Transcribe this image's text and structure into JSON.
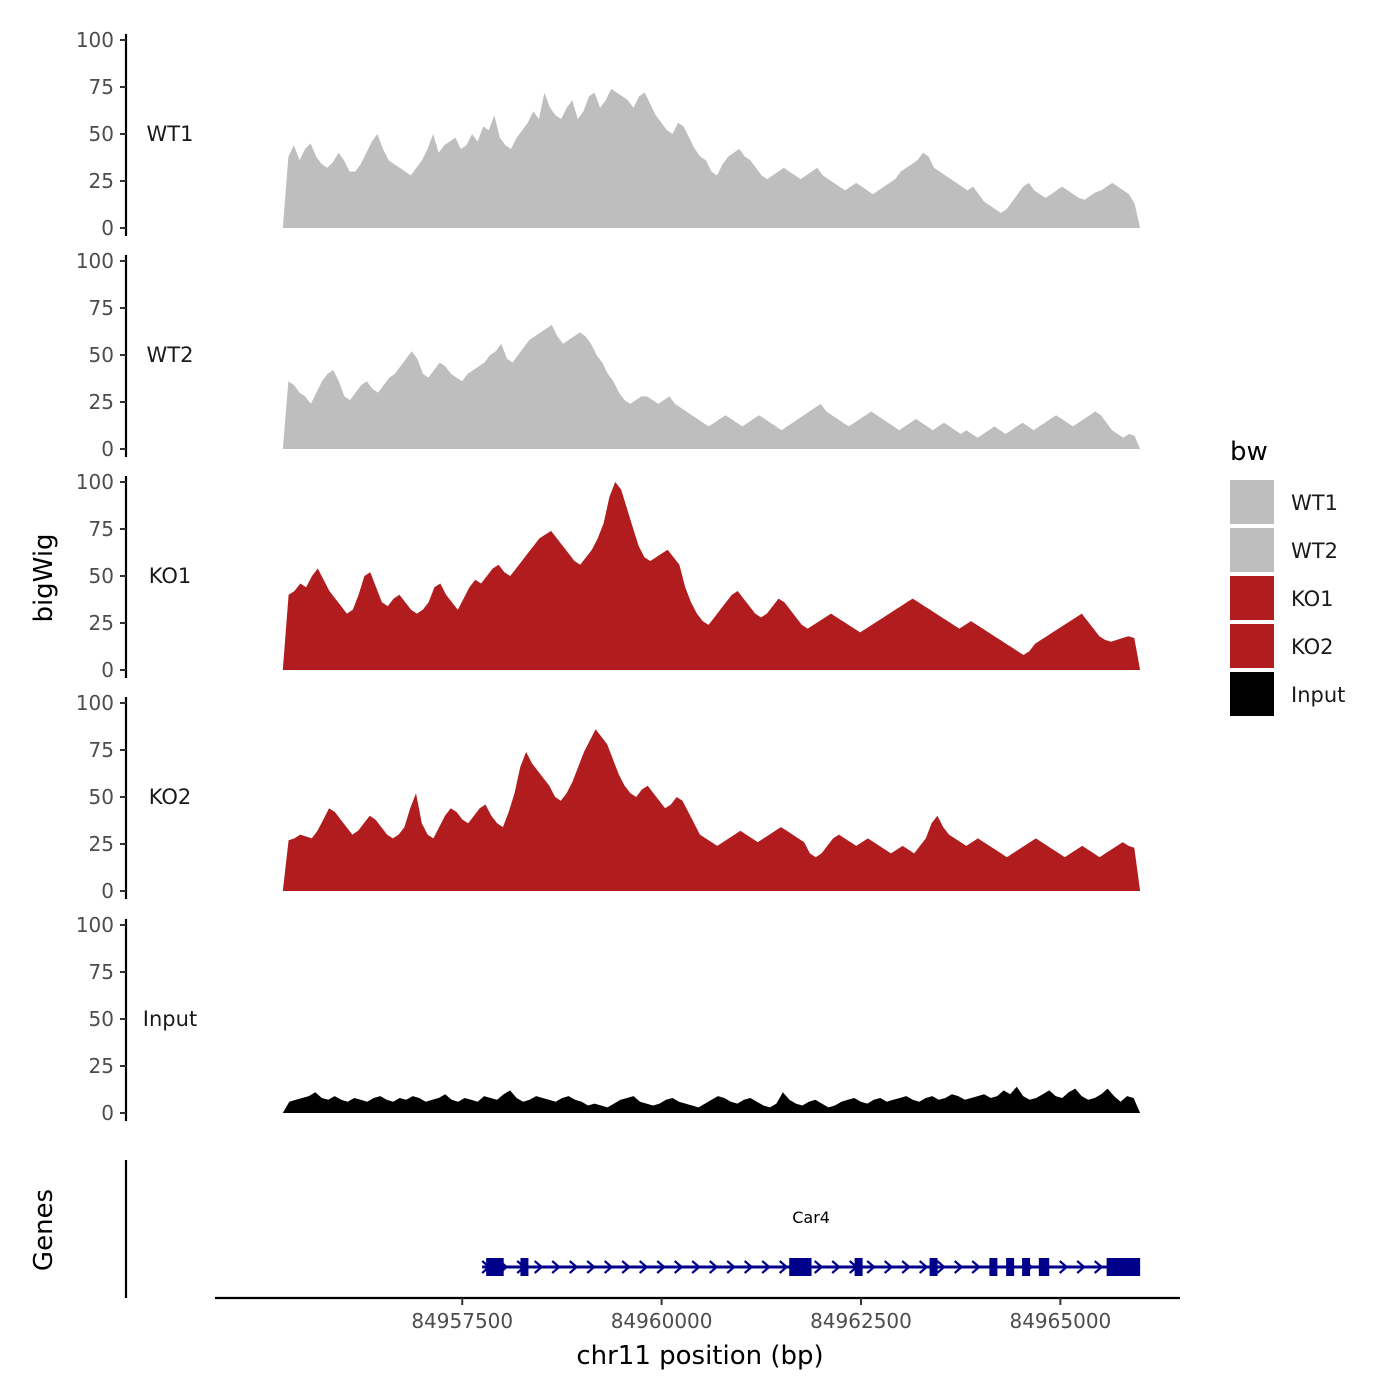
{
  "chart_data": {
    "type": "area",
    "ylabel": "bigWig",
    "xlabel": "chr11 position (bp)",
    "genes_ylabel": "Genes",
    "ylim": [
      0,
      100
    ],
    "yticks": [
      0,
      25,
      50,
      75,
      100
    ],
    "ytick_labels": [
      "0",
      "25",
      "50",
      "75",
      "100"
    ],
    "xlim": [
      84954400,
      84966500
    ],
    "xticks": [
      84957500,
      84960000,
      84962500,
      84965000
    ],
    "xtick_labels": [
      "84957500",
      "84960000",
      "84962500",
      "84965000"
    ],
    "region": {
      "start": 84955250,
      "end": 84966000
    },
    "legend": {
      "title": "bw",
      "entries": [
        {
          "label": "WT1",
          "color": "#bebebe"
        },
        {
          "label": "WT2",
          "color": "#bebebe"
        },
        {
          "label": "KO1",
          "color": "#b11d1f"
        },
        {
          "label": "KO2",
          "color": "#b11d1f"
        },
        {
          "label": "Input",
          "color": "#000000"
        }
      ]
    },
    "series": [
      {
        "name": "WT1",
        "color": "#bebebe",
        "values": [
          0,
          38,
          44,
          36,
          42,
          45,
          38,
          34,
          32,
          35,
          40,
          36,
          30,
          30,
          34,
          40,
          46,
          50,
          42,
          36,
          34,
          32,
          30,
          28,
          32,
          36,
          42,
          50,
          40,
          44,
          46,
          48,
          42,
          44,
          50,
          46,
          54,
          52,
          60,
          48,
          44,
          42,
          48,
          52,
          56,
          62,
          58,
          72,
          64,
          60,
          58,
          64,
          68,
          58,
          62,
          70,
          72,
          64,
          68,
          74,
          72,
          70,
          68,
          64,
          70,
          72,
          66,
          60,
          56,
          52,
          50,
          56,
          54,
          48,
          42,
          38,
          36,
          30,
          28,
          34,
          38,
          40,
          42,
          38,
          36,
          32,
          28,
          26,
          28,
          30,
          32,
          30,
          28,
          26,
          28,
          30,
          32,
          28,
          26,
          24,
          22,
          20,
          22,
          24,
          22,
          20,
          18,
          20,
          22,
          24,
          26,
          30,
          32,
          34,
          36,
          40,
          38,
          32,
          30,
          28,
          26,
          24,
          22,
          20,
          22,
          18,
          14,
          12,
          10,
          8,
          10,
          14,
          18,
          22,
          24,
          20,
          18,
          16,
          18,
          20,
          22,
          20,
          18,
          16,
          15,
          17,
          19,
          20,
          22,
          24,
          22,
          20,
          18,
          13,
          0
        ]
      },
      {
        "name": "WT2",
        "color": "#bebebe",
        "values": [
          0,
          36,
          34,
          30,
          28,
          24,
          30,
          36,
          40,
          42,
          36,
          28,
          26,
          30,
          34,
          36,
          32,
          30,
          34,
          38,
          40,
          44,
          48,
          52,
          48,
          40,
          38,
          42,
          46,
          44,
          40,
          38,
          36,
          40,
          42,
          44,
          46,
          50,
          52,
          56,
          48,
          46,
          50,
          54,
          58,
          60,
          62,
          64,
          66,
          60,
          56,
          58,
          60,
          62,
          60,
          56,
          50,
          46,
          40,
          36,
          30,
          26,
          24,
          26,
          28,
          28,
          26,
          24,
          26,
          28,
          24,
          22,
          20,
          18,
          16,
          14,
          12,
          14,
          16,
          18,
          16,
          14,
          12,
          14,
          16,
          18,
          16,
          14,
          12,
          10,
          12,
          14,
          16,
          18,
          20,
          22,
          24,
          20,
          18,
          16,
          14,
          12,
          14,
          16,
          18,
          20,
          18,
          16,
          14,
          12,
          10,
          12,
          14,
          16,
          14,
          12,
          10,
          12,
          14,
          12,
          10,
          8,
          10,
          8,
          6,
          8,
          10,
          12,
          10,
          8,
          10,
          12,
          14,
          12,
          10,
          12,
          14,
          16,
          18,
          16,
          14,
          12,
          14,
          16,
          18,
          20,
          18,
          14,
          10,
          8,
          6,
          8,
          7,
          0
        ]
      },
      {
        "name": "KO1",
        "color": "#b11d1f",
        "values": [
          0,
          40,
          42,
          46,
          44,
          50,
          54,
          48,
          42,
          38,
          34,
          30,
          32,
          40,
          50,
          52,
          44,
          36,
          34,
          38,
          40,
          36,
          32,
          30,
          32,
          36,
          44,
          46,
          40,
          36,
          32,
          38,
          44,
          48,
          46,
          50,
          54,
          56,
          52,
          50,
          54,
          58,
          62,
          66,
          70,
          72,
          74,
          70,
          66,
          62,
          58,
          56,
          60,
          64,
          70,
          78,
          92,
          100,
          96,
          86,
          76,
          66,
          60,
          58,
          60,
          62,
          64,
          60,
          56,
          44,
          36,
          30,
          26,
          24,
          28,
          32,
          36,
          40,
          42,
          38,
          34,
          30,
          28,
          30,
          34,
          38,
          36,
          32,
          28,
          24,
          22,
          24,
          26,
          28,
          30,
          28,
          26,
          24,
          22,
          20,
          22,
          24,
          26,
          28,
          30,
          32,
          34,
          36,
          38,
          36,
          34,
          32,
          30,
          28,
          26,
          24,
          22,
          24,
          26,
          24,
          22,
          20,
          18,
          16,
          14,
          12,
          10,
          8,
          10,
          14,
          16,
          18,
          20,
          22,
          24,
          26,
          28,
          30,
          26,
          22,
          18,
          16,
          15,
          16,
          17,
          18,
          17,
          0
        ]
      },
      {
        "name": "KO2",
        "color": "#b11d1f",
        "values": [
          0,
          27,
          28,
          30,
          29,
          28,
          32,
          38,
          44,
          42,
          38,
          34,
          30,
          32,
          36,
          40,
          38,
          34,
          30,
          28,
          30,
          34,
          44,
          52,
          36,
          30,
          28,
          34,
          40,
          44,
          42,
          38,
          36,
          40,
          44,
          46,
          40,
          36,
          34,
          42,
          52,
          66,
          74,
          68,
          64,
          60,
          56,
          50,
          48,
          52,
          58,
          66,
          74,
          80,
          86,
          82,
          78,
          70,
          62,
          56,
          52,
          50,
          54,
          56,
          52,
          48,
          44,
          46,
          50,
          48,
          42,
          36,
          30,
          28,
          26,
          24,
          26,
          28,
          30,
          32,
          30,
          28,
          26,
          28,
          30,
          32,
          34,
          32,
          30,
          28,
          26,
          20,
          18,
          20,
          24,
          28,
          30,
          28,
          26,
          24,
          26,
          28,
          26,
          24,
          22,
          20,
          22,
          24,
          22,
          20,
          24,
          28,
          36,
          40,
          34,
          30,
          28,
          26,
          24,
          26,
          28,
          26,
          24,
          22,
          20,
          18,
          20,
          22,
          24,
          26,
          28,
          26,
          24,
          22,
          20,
          18,
          20,
          22,
          24,
          22,
          20,
          18,
          20,
          22,
          24,
          26,
          24,
          23,
          0
        ]
      },
      {
        "name": "Input",
        "color": "#000000",
        "values": [
          0,
          6,
          7,
          8,
          9,
          11,
          8,
          7,
          9,
          7,
          6,
          8,
          7,
          6,
          8,
          9,
          7,
          6,
          8,
          7,
          9,
          8,
          6,
          7,
          8,
          10,
          7,
          6,
          8,
          7,
          6,
          9,
          8,
          7,
          10,
          12,
          8,
          6,
          7,
          9,
          8,
          7,
          6,
          8,
          9,
          7,
          6,
          4,
          5,
          4,
          3,
          5,
          7,
          8,
          9,
          6,
          5,
          4,
          5,
          7,
          8,
          6,
          5,
          4,
          3,
          5,
          7,
          9,
          8,
          6,
          5,
          7,
          8,
          6,
          4,
          3,
          5,
          11,
          7,
          5,
          4,
          6,
          7,
          5,
          3,
          4,
          6,
          7,
          8,
          6,
          5,
          7,
          8,
          6,
          7,
          8,
          9,
          7,
          6,
          8,
          9,
          7,
          8,
          10,
          9,
          7,
          8,
          9,
          10,
          8,
          9,
          12,
          10,
          14,
          9,
          7,
          8,
          10,
          12,
          9,
          8,
          11,
          13,
          9,
          7,
          8,
          10,
          13,
          9,
          6,
          9,
          8,
          0
        ]
      }
    ],
    "gene": {
      "name": "Car4",
      "strand": "+",
      "start": 84957750,
      "end": 84966000,
      "color": "#00008b",
      "exons": [
        {
          "start": 84957800,
          "end": 84958020
        },
        {
          "start": 84958230,
          "end": 84958330
        },
        {
          "start": 84961600,
          "end": 84961880
        },
        {
          "start": 84962420,
          "end": 84962510
        },
        {
          "start": 84963360,
          "end": 84963460
        },
        {
          "start": 84964110,
          "end": 84964210
        },
        {
          "start": 84964320,
          "end": 84964400
        },
        {
          "start": 84964520,
          "end": 84964590
        },
        {
          "start": 84964730,
          "end": 84964860
        },
        {
          "start": 84965580,
          "end": 84966000
        }
      ]
    }
  }
}
